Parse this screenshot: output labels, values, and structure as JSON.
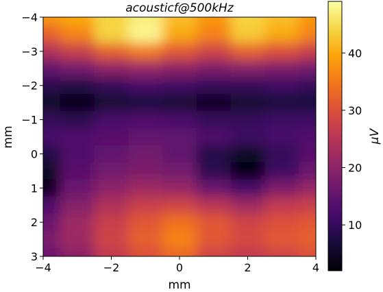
{
  "chart_data": {
    "type": "heatmap",
    "title": "acousticf@500kHz",
    "xlabel": "mm",
    "ylabel": "mm",
    "xlim": [
      -4,
      4
    ],
    "ylim": [
      3,
      -4
    ],
    "x_ticks": [
      -4,
      -2,
      0,
      2,
      4
    ],
    "y_ticks": [
      -4,
      -3,
      -2,
      -1,
      0,
      1,
      2,
      3
    ],
    "x_tick_labels": [
      "−4",
      "−2",
      "0",
      "2",
      "4"
    ],
    "y_tick_labels": [
      "−4",
      "−3",
      "−2",
      "−1",
      "0",
      "1",
      "2",
      "3"
    ],
    "colormap": "inferno",
    "colorbar": {
      "label": "μV",
      "range": [
        2,
        49
      ],
      "ticks": [
        10,
        20,
        30,
        40
      ],
      "tick_labels": [
        "10",
        "20",
        "30",
        "40"
      ]
    },
    "grid": false,
    "x": [
      -4,
      -3,
      -2,
      -1,
      0,
      1,
      2,
      3,
      4
    ],
    "y": [
      -4,
      -3.5,
      -3,
      -2.5,
      -2,
      -1.5,
      -1,
      -0.5,
      0,
      0.5,
      1,
      1.5,
      2,
      2.5,
      3
    ],
    "z": [
      [
        38,
        40,
        44,
        47,
        42,
        38,
        44,
        42,
        38
      ],
      [
        32,
        36,
        44,
        48,
        40,
        36,
        43,
        40,
        36
      ],
      [
        24,
        27,
        32,
        35,
        31,
        28,
        32,
        30,
        27
      ],
      [
        15,
        17,
        20,
        21,
        20,
        18,
        19,
        18,
        17
      ],
      [
        9,
        8,
        10,
        12,
        11,
        10,
        10,
        11,
        10
      ],
      [
        5,
        3,
        6,
        7,
        6,
        4,
        6,
        7,
        7
      ],
      [
        10,
        9,
        12,
        13,
        12,
        10,
        10,
        11,
        11
      ],
      [
        12,
        13,
        14,
        15,
        15,
        13,
        11,
        12,
        13
      ],
      [
        8,
        13,
        15,
        17,
        15,
        8,
        5,
        10,
        14
      ],
      [
        5,
        14,
        17,
        18,
        17,
        9,
        3,
        11,
        16
      ],
      [
        4,
        16,
        20,
        22,
        21,
        16,
        12,
        18,
        21
      ],
      [
        13,
        19,
        24,
        27,
        28,
        25,
        22,
        26,
        27
      ],
      [
        16,
        22,
        27,
        31,
        34,
        31,
        28,
        30,
        31
      ],
      [
        18,
        22,
        28,
        32,
        36,
        31,
        29,
        31,
        32
      ],
      [
        16,
        20,
        26,
        30,
        33,
        28,
        26,
        28,
        30
      ]
    ]
  }
}
